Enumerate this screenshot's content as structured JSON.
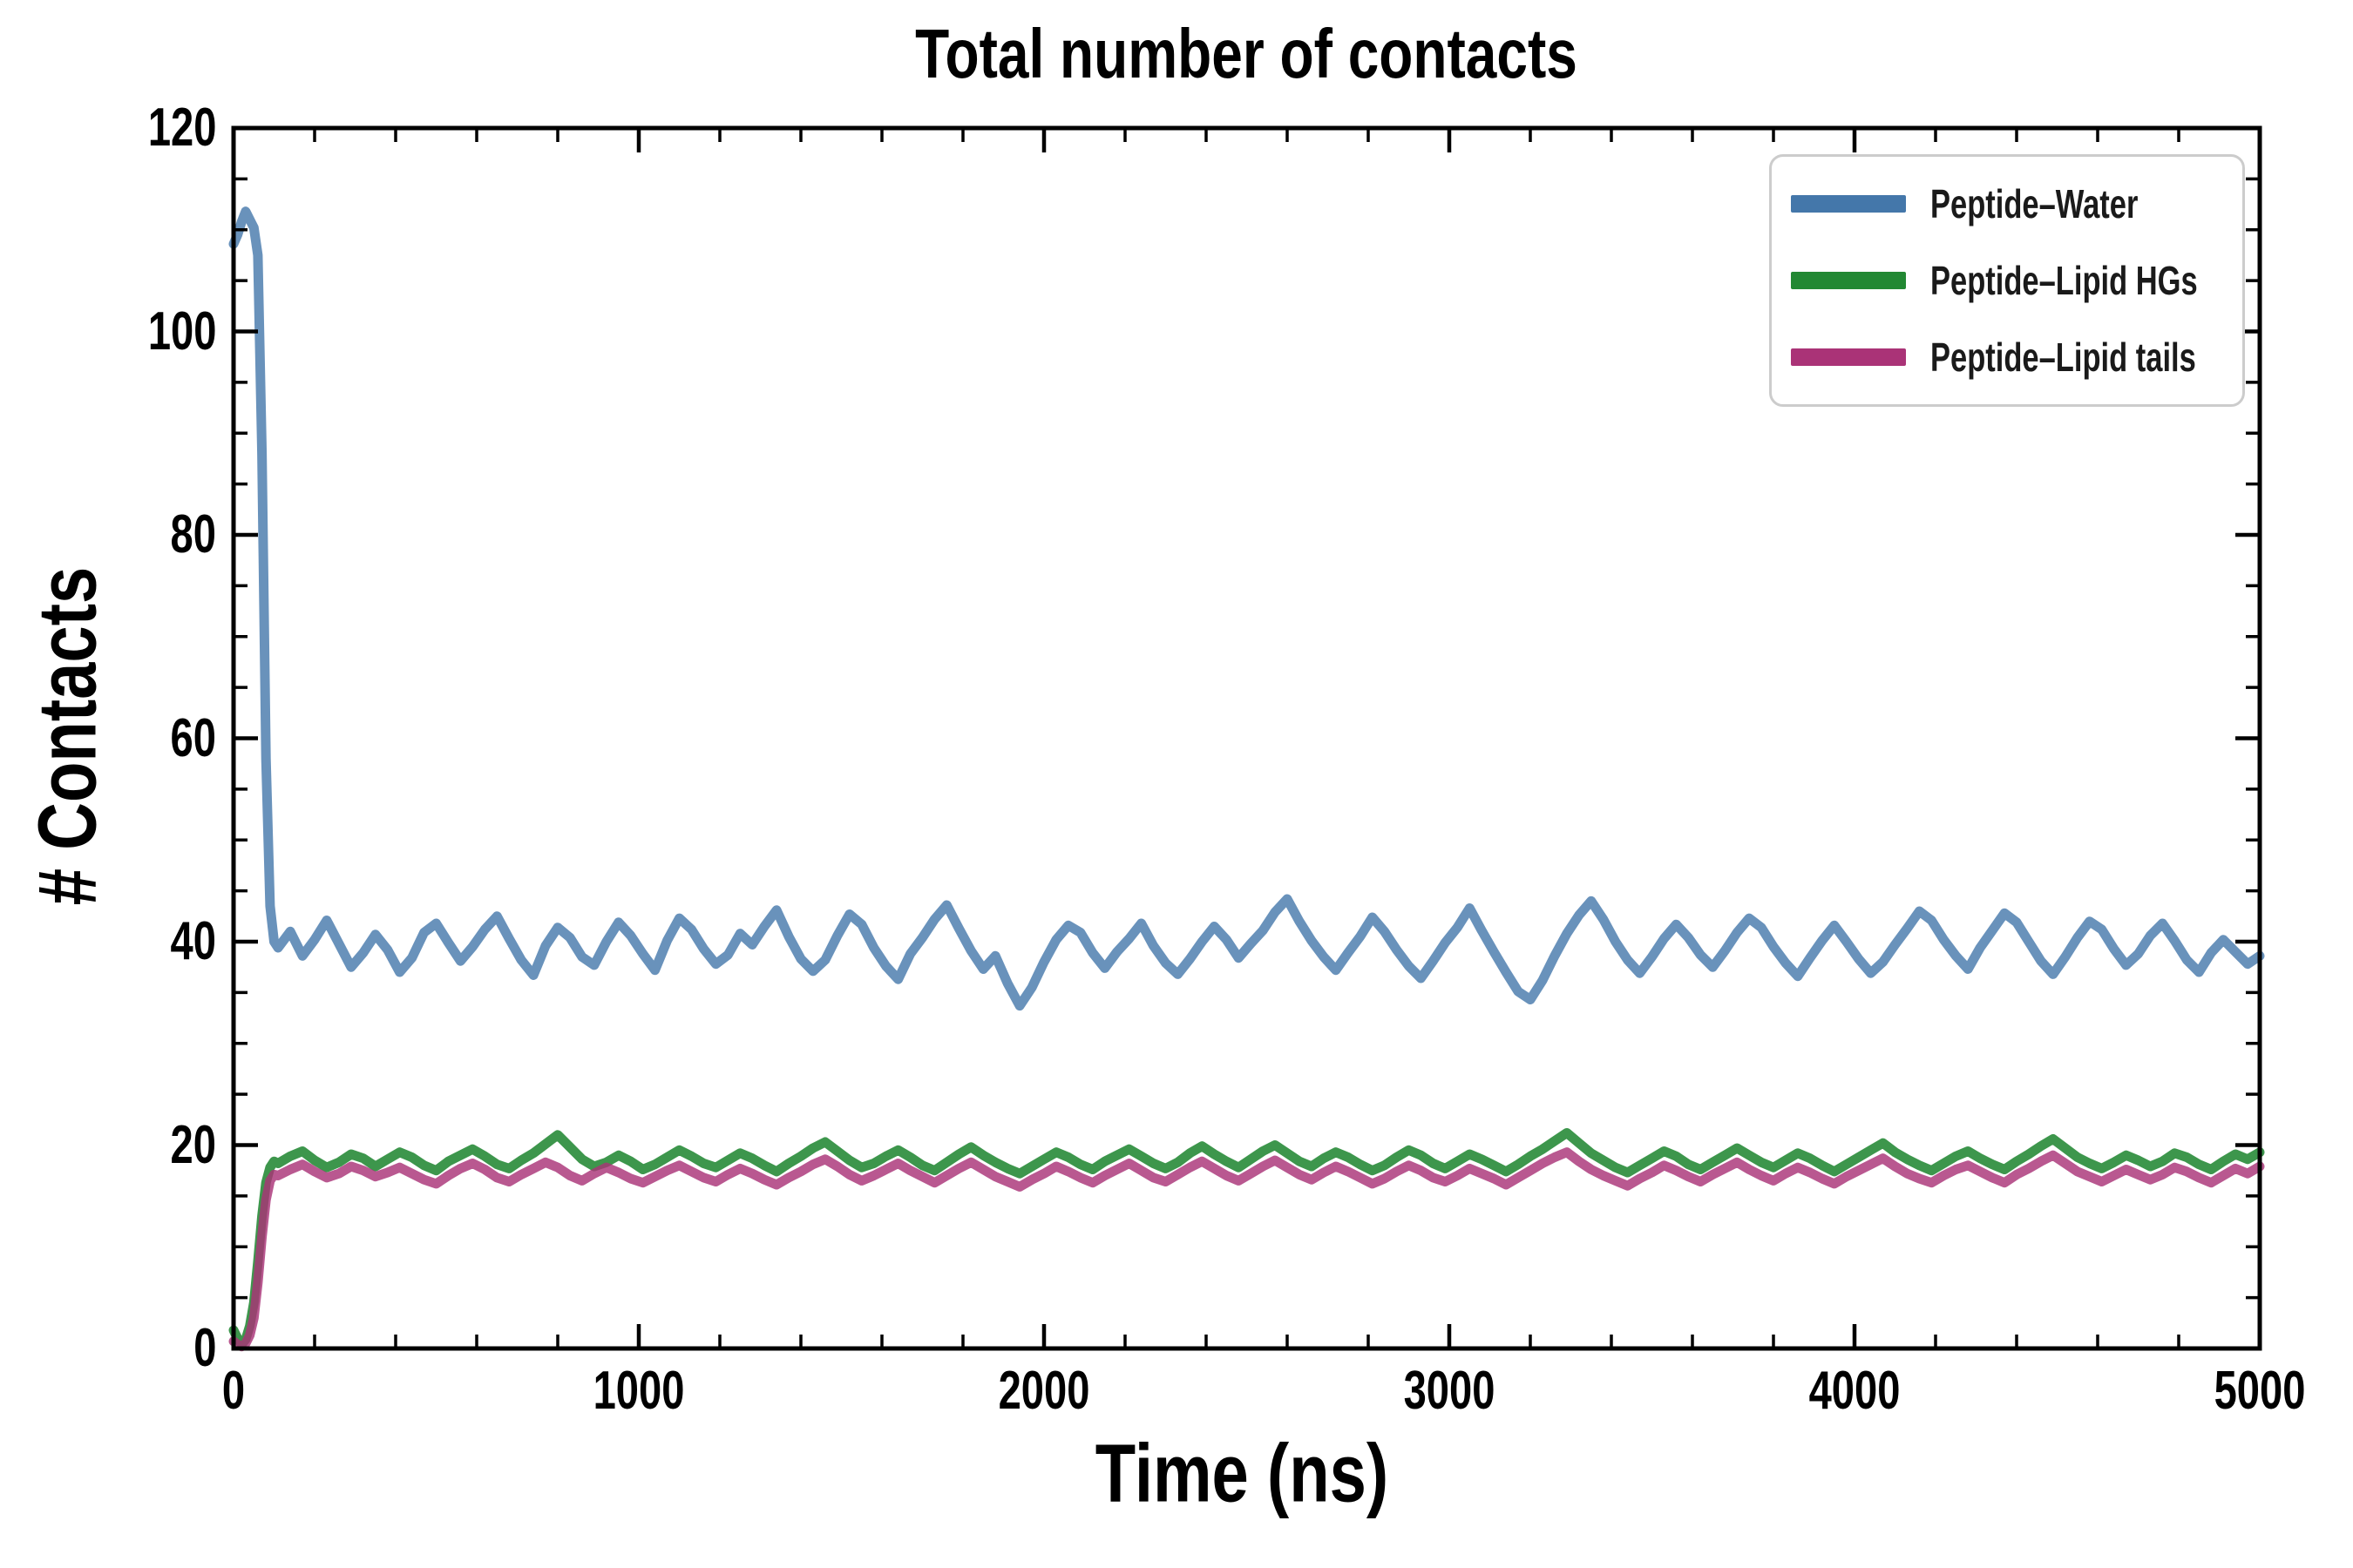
{
  "chart_data": {
    "type": "line",
    "title": "Total number of contacts",
    "xlabel": "Time (ns)",
    "ylabel": "# Contacts",
    "xlim": [
      0,
      5000
    ],
    "ylim": [
      0,
      120
    ],
    "x_ticks": [
      0,
      1000,
      2000,
      3000,
      4000,
      5000
    ],
    "x_tick_labels": [
      "0",
      "1000",
      "2000",
      "3000",
      "4000",
      "5000"
    ],
    "x_minor_step": 200,
    "y_ticks": [
      0,
      20,
      40,
      60,
      80,
      100,
      120
    ],
    "y_tick_labels": [
      "0",
      "20",
      "40",
      "60",
      "80",
      "100",
      "120"
    ],
    "y_minor_step": 5,
    "grid": false,
    "legend_position": "upper right",
    "tick_direction": "in",
    "axis_color": "#000000",
    "series": [
      {
        "id": "peptide-water",
        "name": "Peptide–Water",
        "color": "#4477AA",
        "line_width": 11,
        "opacity": 0.8,
        "x_transient_start": 0,
        "x_transient_step": 10,
        "y_transient": [
          108.6,
          109.5,
          110.8,
          111.8,
          111.0,
          110.2,
          107.5,
          88.0,
          58.0,
          43.5,
          40.0
        ],
        "x_plateau_start": 110,
        "x_plateau_step": 30,
        "y_plateau": [
          39.4,
          41.0,
          38.6,
          40.2,
          42.1,
          39.8,
          37.5,
          38.9,
          40.7,
          39.2,
          37.0,
          38.4,
          40.9,
          41.8,
          39.9,
          38.1,
          39.5,
          41.2,
          42.5,
          40.3,
          38.2,
          36.7,
          39.6,
          41.4,
          40.4,
          38.5,
          37.7,
          40.0,
          41.9,
          40.6,
          38.8,
          37.2,
          40.1,
          42.3,
          41.2,
          39.3,
          37.8,
          38.7,
          40.8,
          39.7,
          41.5,
          43.1,
          40.5,
          38.3,
          37.1,
          38.2,
          40.6,
          42.7,
          41.7,
          39.4,
          37.6,
          36.3,
          38.8,
          40.4,
          42.2,
          43.6,
          41.3,
          39.1,
          37.3,
          38.6,
          35.9,
          33.7,
          35.5,
          38.0,
          40.2,
          41.6,
          40.9,
          38.9,
          37.4,
          39.0,
          40.3,
          41.8,
          39.6,
          37.9,
          36.8,
          38.3,
          40.0,
          41.5,
          40.2,
          38.4,
          39.8,
          41.1,
          42.9,
          44.2,
          42.0,
          40.1,
          38.5,
          37.2,
          38.9,
          40.5,
          42.4,
          41.0,
          39.2,
          37.6,
          36.4,
          38.1,
          39.9,
          41.4,
          43.3,
          41.1,
          39.0,
          37.0,
          35.1,
          34.3,
          36.2,
          38.6,
          40.8,
          42.6,
          44.0,
          42.2,
          40.0,
          38.2,
          36.9,
          38.5,
          40.3,
          41.7,
          40.4,
          38.7,
          37.5,
          39.1,
          40.9,
          42.3,
          41.4,
          39.5,
          37.9,
          36.6,
          38.4,
          40.1,
          41.6,
          40.0,
          38.3,
          36.9,
          38.0,
          39.7,
          41.3,
          43.0,
          42.1,
          40.2,
          38.6,
          37.3,
          39.4,
          41.1,
          42.8,
          41.9,
          40.0,
          38.1,
          36.8,
          38.5,
          40.4,
          42.0,
          41.2,
          39.3,
          37.7,
          38.8,
          40.6,
          41.8,
          40.1,
          38.2,
          37.0,
          38.9,
          40.2,
          39.0,
          37.8,
          38.6
        ]
      },
      {
        "id": "peptide-lipid-hgs",
        "name": "Peptide–Lipid HGs",
        "color": "#228833",
        "line_width": 11,
        "opacity": 0.88,
        "x_transient_start": 0,
        "x_transient_step": 10,
        "y_transient": [
          1.8,
          1.0,
          0.4,
          0.9,
          2.2,
          4.5,
          8.5,
          13.0,
          16.3,
          17.8,
          18.4
        ],
        "x_plateau_start": 110,
        "x_plateau_step": 30,
        "y_plateau": [
          18.2,
          18.9,
          19.4,
          18.5,
          17.8,
          18.3,
          19.1,
          18.7,
          17.9,
          18.6,
          19.3,
          18.8,
          18.0,
          17.5,
          18.4,
          19.0,
          19.6,
          18.9,
          18.1,
          17.7,
          18.5,
          19.2,
          20.1,
          21.0,
          19.8,
          18.6,
          17.9,
          18.3,
          19.0,
          18.4,
          17.6,
          18.1,
          18.8,
          19.5,
          18.9,
          18.2,
          17.8,
          18.5,
          19.2,
          18.7,
          18.0,
          17.4,
          18.2,
          18.9,
          19.7,
          20.3,
          19.4,
          18.5,
          17.8,
          18.2,
          18.9,
          19.5,
          18.8,
          18.0,
          17.5,
          18.3,
          19.1,
          19.8,
          19.0,
          18.3,
          17.7,
          17.2,
          17.9,
          18.6,
          19.3,
          18.8,
          18.1,
          17.6,
          18.4,
          19.0,
          19.6,
          18.9,
          18.2,
          17.7,
          18.3,
          19.2,
          19.9,
          19.1,
          18.4,
          17.8,
          18.6,
          19.4,
          20.0,
          19.2,
          18.4,
          17.9,
          18.7,
          19.3,
          18.8,
          18.1,
          17.5,
          18.0,
          18.8,
          19.5,
          19.0,
          18.2,
          17.7,
          18.4,
          19.1,
          18.6,
          18.0,
          17.4,
          18.1,
          18.9,
          19.6,
          20.4,
          21.2,
          20.2,
          19.2,
          18.5,
          17.8,
          17.3,
          18.0,
          18.7,
          19.4,
          18.9,
          18.1,
          17.6,
          18.3,
          19.0,
          19.7,
          19.0,
          18.3,
          17.8,
          18.5,
          19.2,
          18.7,
          18.0,
          17.4,
          18.1,
          18.8,
          19.5,
          20.2,
          19.3,
          18.6,
          18.0,
          17.5,
          18.2,
          18.9,
          19.4,
          18.7,
          18.1,
          17.6,
          18.4,
          19.1,
          19.9,
          20.6,
          19.7,
          18.8,
          18.2,
          17.7,
          18.3,
          19.0,
          18.5,
          17.9,
          18.4,
          19.2,
          18.8,
          18.1,
          17.6,
          18.4,
          19.1,
          18.6,
          19.3
        ]
      },
      {
        "id": "peptide-lipid-tails",
        "name": "Peptide–Lipid tails",
        "color": "#AA3377",
        "line_width": 11,
        "opacity": 0.82,
        "x_transient_start": 0,
        "x_transient_step": 10,
        "y_transient": [
          0.7,
          0.4,
          0.2,
          0.5,
          1.3,
          3.0,
          6.5,
          11.0,
          14.6,
          16.5,
          17.1
        ],
        "x_plateau_start": 110,
        "x_plateau_step": 30,
        "y_plateau": [
          17.0,
          17.6,
          18.1,
          17.4,
          16.8,
          17.2,
          17.9,
          17.5,
          16.9,
          17.3,
          17.8,
          17.2,
          16.6,
          16.2,
          17.0,
          17.7,
          18.2,
          17.6,
          16.8,
          16.4,
          17.1,
          17.7,
          18.3,
          17.8,
          17.0,
          16.5,
          17.2,
          17.8,
          17.3,
          16.7,
          16.3,
          16.9,
          17.5,
          18.0,
          17.4,
          16.8,
          16.4,
          17.1,
          17.7,
          17.2,
          16.6,
          16.1,
          16.8,
          17.4,
          18.1,
          18.6,
          17.9,
          17.1,
          16.5,
          17.0,
          17.6,
          18.2,
          17.5,
          16.9,
          16.3,
          17.0,
          17.7,
          18.3,
          17.6,
          16.9,
          16.4,
          15.9,
          16.6,
          17.2,
          17.9,
          17.4,
          16.8,
          16.3,
          17.0,
          17.6,
          18.2,
          17.5,
          16.8,
          16.4,
          17.1,
          17.8,
          18.4,
          17.7,
          17.0,
          16.5,
          17.2,
          17.9,
          18.5,
          17.8,
          17.1,
          16.6,
          17.3,
          17.9,
          17.4,
          16.8,
          16.2,
          16.7,
          17.4,
          18.0,
          17.5,
          16.8,
          16.4,
          17.0,
          17.7,
          17.2,
          16.7,
          16.1,
          16.8,
          17.5,
          18.2,
          18.8,
          19.3,
          18.4,
          17.6,
          17.0,
          16.5,
          16.0,
          16.7,
          17.3,
          18.0,
          17.5,
          16.9,
          16.4,
          17.1,
          17.7,
          18.3,
          17.6,
          17.0,
          16.5,
          17.2,
          17.8,
          17.3,
          16.7,
          16.2,
          16.9,
          17.5,
          18.1,
          18.7,
          17.9,
          17.2,
          16.7,
          16.3,
          17.0,
          17.6,
          18.0,
          17.4,
          16.8,
          16.3,
          17.1,
          17.7,
          18.4,
          19.0,
          18.2,
          17.4,
          16.9,
          16.4,
          17.0,
          17.6,
          17.1,
          16.6,
          17.1,
          17.8,
          17.4,
          16.8,
          16.3,
          17.0,
          17.7,
          17.2,
          17.9
        ]
      }
    ]
  }
}
